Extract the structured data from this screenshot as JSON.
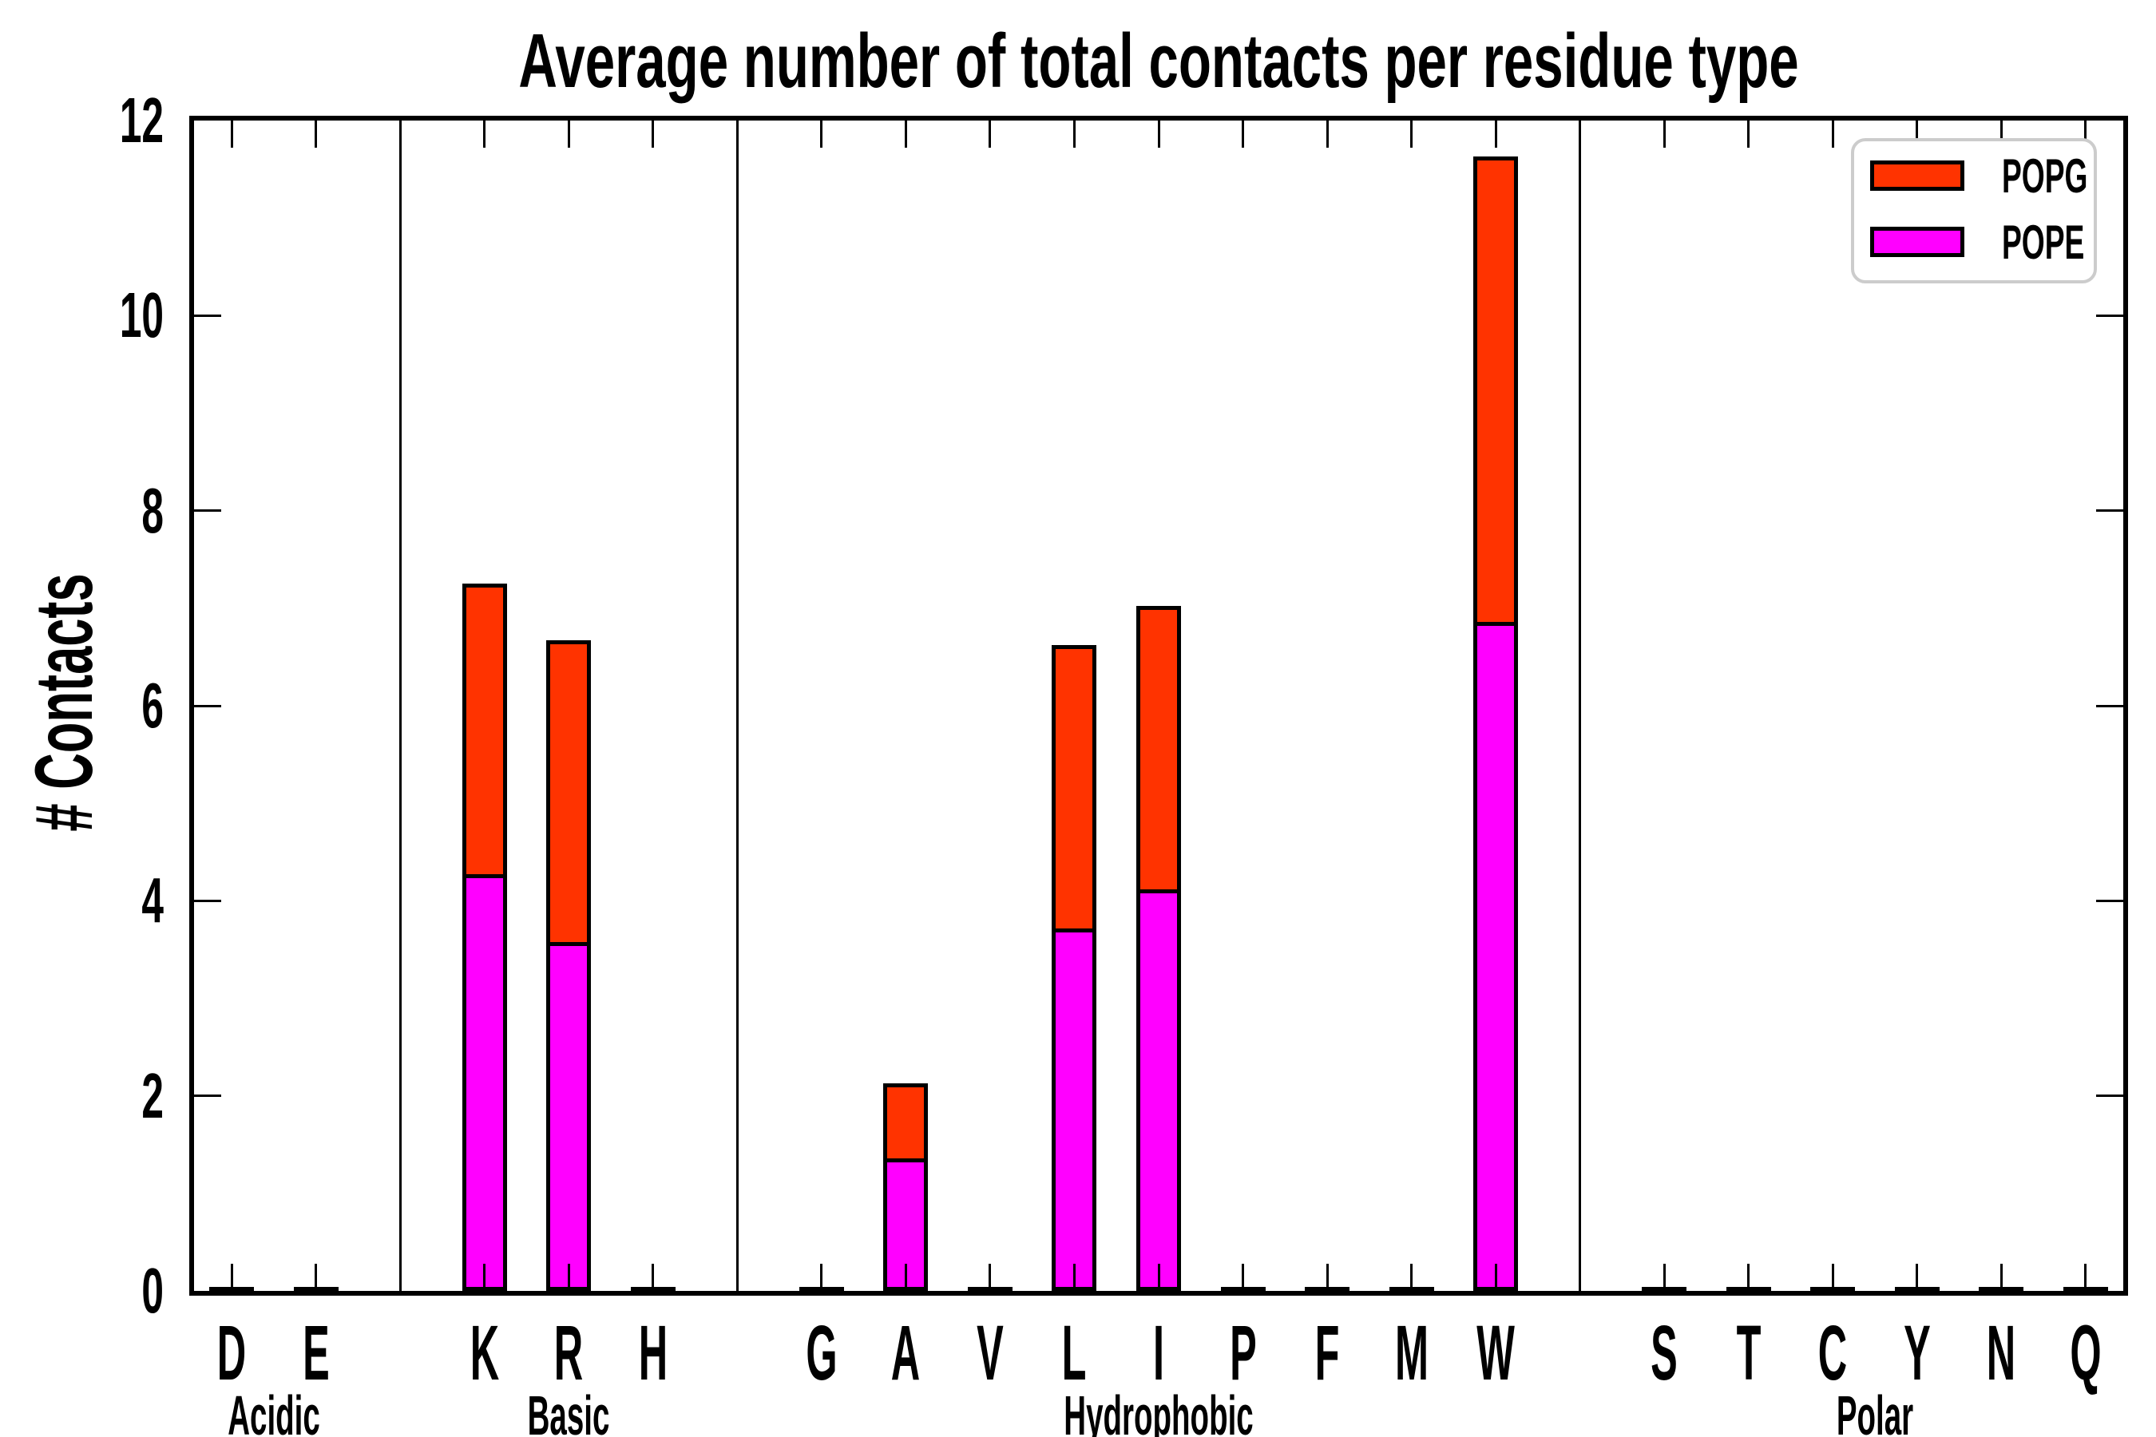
{
  "title": "Average number of total contacts per residue type",
  "ylabel": "# Contacts",
  "colors": {
    "background": "#FFFFFF",
    "axis": "#000000",
    "legend_border": "#CCCCCC",
    "popg": "#FF3300",
    "pope": "#FF00FF"
  },
  "legend": {
    "position": "upper right",
    "items": [
      {
        "label": "POPG"
      },
      {
        "label": "POPE"
      }
    ]
  },
  "chart_data": {
    "type": "bar",
    "stacked": true,
    "title": "Average number of total contacts per residue type",
    "xlabel": "",
    "ylabel": "# Contacts",
    "ylim": [
      0,
      12
    ],
    "yticks": [
      0,
      2,
      4,
      6,
      8,
      10,
      12
    ],
    "grid": false,
    "categories": [
      "D",
      "E",
      "K",
      "R",
      "H",
      "G",
      "A",
      "V",
      "L",
      "I",
      "P",
      "F",
      "M",
      "W",
      "S",
      "T",
      "C",
      "Y",
      "N",
      "Q"
    ],
    "positions": [
      0,
      1,
      3,
      4,
      5,
      7,
      8,
      9,
      10,
      11,
      12,
      13,
      14,
      15,
      17,
      18,
      19,
      20,
      21,
      22
    ],
    "xlim": [
      -0.45,
      22.45
    ],
    "group_separators": [
      2,
      6,
      16
    ],
    "groups": [
      {
        "label": "Acidic",
        "center": 0.5,
        "members": [
          "D",
          "E"
        ]
      },
      {
        "label": "Basic",
        "center": 4,
        "members": [
          "K",
          "R",
          "H"
        ]
      },
      {
        "label": "Hydrophobic",
        "center": 11,
        "members": [
          "G",
          "A",
          "V",
          "L",
          "I",
          "P",
          "F",
          "M",
          "W"
        ]
      },
      {
        "label": "Polar",
        "center": 19.5,
        "members": [
          "S",
          "T",
          "C",
          "Y",
          "N",
          "Q"
        ]
      }
    ],
    "series": [
      {
        "name": "POPG",
        "color": "#FF3300",
        "values": [
          0,
          0,
          2.98,
          3.09,
          0,
          0,
          0.77,
          0,
          2.9,
          2.9,
          0,
          0,
          0,
          4.77,
          0,
          0,
          0,
          0,
          0,
          0
        ]
      },
      {
        "name": "POPE",
        "color": "#FF00FF",
        "values": [
          0.02,
          0.02,
          4.27,
          3.58,
          0.02,
          0.02,
          1.36,
          0.02,
          3.72,
          4.12,
          0.02,
          0.02,
          0.02,
          6.86,
          0.02,
          0.02,
          0.02,
          0.02,
          0.02,
          0.02
        ]
      }
    ]
  }
}
